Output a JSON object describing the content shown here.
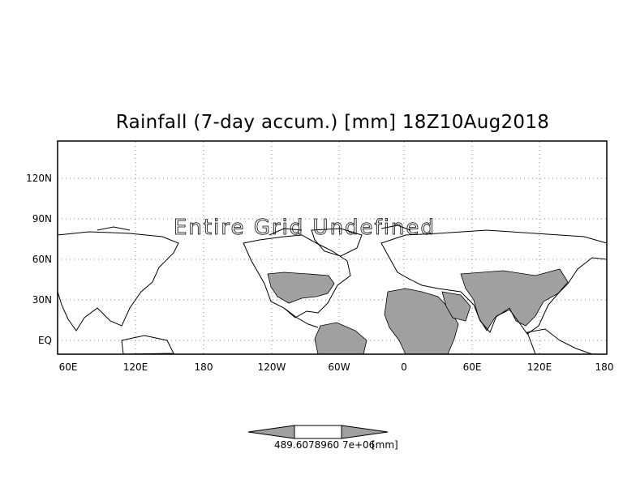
{
  "title": "Rainfall (7-day accum.) [mm] 18Z10Aug2018",
  "map_message": "Entire Grid Undefined",
  "y_ticks": [
    "120N",
    "90N",
    "60N",
    "30N",
    "EQ"
  ],
  "x_ticks": [
    "60E",
    "120E",
    "180",
    "120W",
    "60W",
    "0",
    "60E",
    "120E",
    "180"
  ],
  "colorbar": {
    "label": "489.6078960 7e+06",
    "unit": "[mm]"
  },
  "colors": {
    "land_fill": "#a0a0a0",
    "outline": "#000000",
    "grid": "#808080"
  }
}
